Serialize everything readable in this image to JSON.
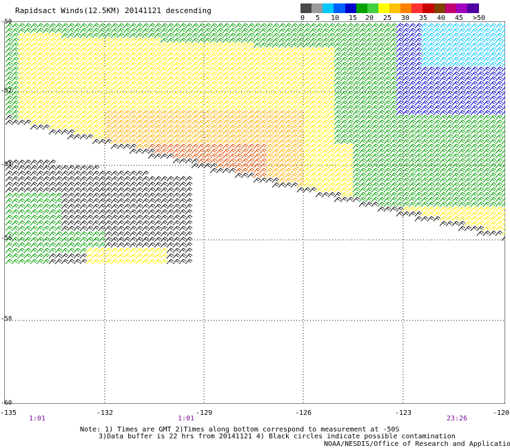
{
  "title": "Rapidsact Winds(12.5KM) 20141121 descending",
  "legend": {
    "labels": [
      "0",
      "5",
      "10",
      "15",
      "20",
      "25",
      "30",
      "35",
      "40",
      "45",
      ">50 knots"
    ],
    "colors": [
      "#4a4a4a",
      "#9a9a9a",
      "#00c8ff",
      "#0060ff",
      "#0000cc",
      "#00a000",
      "#40d040",
      "#ffff00",
      "#ffc000",
      "#ff8000",
      "#ff3030",
      "#c80000",
      "#804000",
      "#c00070",
      "#a000c0",
      "#5000a0"
    ]
  },
  "axes": {
    "lat_labels": [
      "-50",
      "-52",
      "-54",
      "-56",
      "-58",
      "-60"
    ],
    "lon_labels": [
      "-135",
      "-132",
      "-129",
      "-126",
      "-123",
      "-120"
    ]
  },
  "times": [
    "1:01",
    "1:01",
    "23:26"
  ],
  "notes": {
    "line1": "Note: 1) Times are GMT 2)Times along bottom correspond to measurement at -50S",
    "line2": "3)Data buffer is 22 hrs from 20141121 4) Black circles indicate possible contamination",
    "line3": "NOAA/NESDIS/Office of Research and Applications"
  },
  "swath_colors": {
    "light_wind": "#1a1a1a",
    "moderate": "#00a000",
    "fresh": "#ffee00",
    "strong": "#ffb000",
    "gale": "#e05000",
    "northeast_light": "#00c8ff",
    "northeast_blue": "#0000cc"
  }
}
